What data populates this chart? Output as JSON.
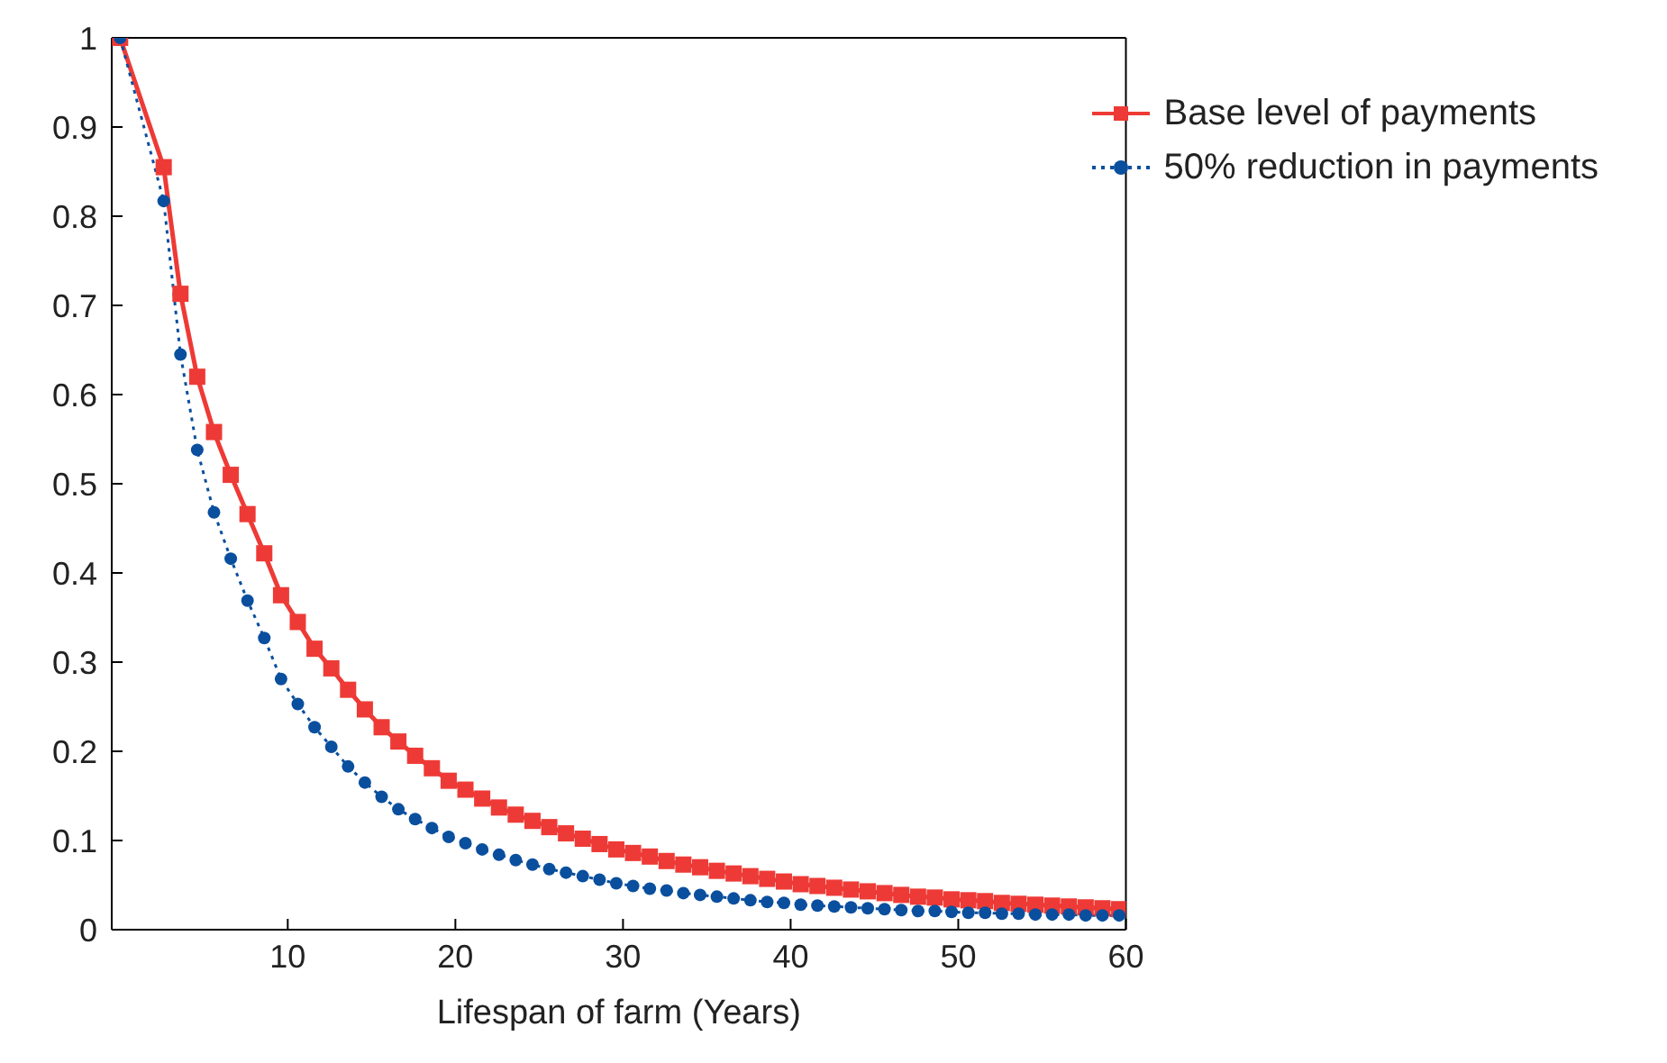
{
  "chart_data": {
    "type": "line",
    "xlabel": "Lifespan of farm (Years)",
    "x": [
      0,
      2.6,
      3.6,
      4.6,
      5.6,
      6.6,
      7.6,
      8.6,
      9.6,
      10.6,
      11.6,
      12.6,
      13.6,
      14.6,
      15.6,
      16.6,
      17.6,
      18.6,
      19.6,
      20.6,
      21.6,
      22.6,
      23.6,
      24.6,
      25.6,
      26.6,
      27.6,
      28.6,
      29.6,
      30.6,
      31.6,
      32.6,
      33.6,
      34.6,
      35.6,
      36.6,
      37.6,
      38.6,
      39.6,
      40.6,
      41.6,
      42.6,
      43.6,
      44.6,
      45.6,
      46.6,
      47.6,
      48.6,
      49.6,
      50.6,
      51.6,
      52.6,
      53.6,
      54.6,
      55.6,
      56.6,
      57.6,
      58.6,
      59.6
    ],
    "series": [
      {
        "name": "Base level of payments",
        "color": "#ee3a36",
        "marker": "square",
        "line_style": "solid",
        "values": [
          1.0,
          0.855,
          0.713,
          0.62,
          0.558,
          0.51,
          0.466,
          0.422,
          0.375,
          0.345,
          0.315,
          0.293,
          0.269,
          0.247,
          0.227,
          0.211,
          0.195,
          0.181,
          0.167,
          0.157,
          0.147,
          0.137,
          0.129,
          0.122,
          0.115,
          0.108,
          0.102,
          0.096,
          0.09,
          0.086,
          0.082,
          0.077,
          0.073,
          0.07,
          0.066,
          0.063,
          0.06,
          0.057,
          0.054,
          0.051,
          0.049,
          0.047,
          0.045,
          0.043,
          0.041,
          0.039,
          0.037,
          0.036,
          0.034,
          0.033,
          0.032,
          0.03,
          0.029,
          0.028,
          0.027,
          0.026,
          0.025,
          0.024,
          0.023
        ]
      },
      {
        "name": "50% reduction in payments",
        "color": "#0a4f9e",
        "marker": "circle",
        "line_style": "dotted",
        "values": [
          1.0,
          0.817,
          0.645,
          0.538,
          0.468,
          0.416,
          0.369,
          0.327,
          0.281,
          0.253,
          0.227,
          0.205,
          0.183,
          0.165,
          0.149,
          0.135,
          0.124,
          0.114,
          0.104,
          0.097,
          0.09,
          0.084,
          0.078,
          0.073,
          0.068,
          0.064,
          0.06,
          0.056,
          0.052,
          0.049,
          0.046,
          0.044,
          0.041,
          0.039,
          0.037,
          0.035,
          0.033,
          0.031,
          0.03,
          0.028,
          0.027,
          0.026,
          0.025,
          0.024,
          0.023,
          0.022,
          0.021,
          0.021,
          0.02,
          0.019,
          0.019,
          0.018,
          0.018,
          0.017,
          0.017,
          0.017,
          0.016,
          0.016,
          0.016
        ]
      }
    ],
    "xlim": [
      -0.5,
      60
    ],
    "xticks": [
      10,
      20,
      30,
      40,
      50,
      60
    ],
    "ylim": [
      0,
      1
    ],
    "yticks": [
      0,
      0.1,
      0.2,
      0.3,
      0.4,
      0.5,
      0.6,
      0.7,
      0.8,
      0.9,
      1
    ],
    "grid": false,
    "legend": "top right"
  }
}
